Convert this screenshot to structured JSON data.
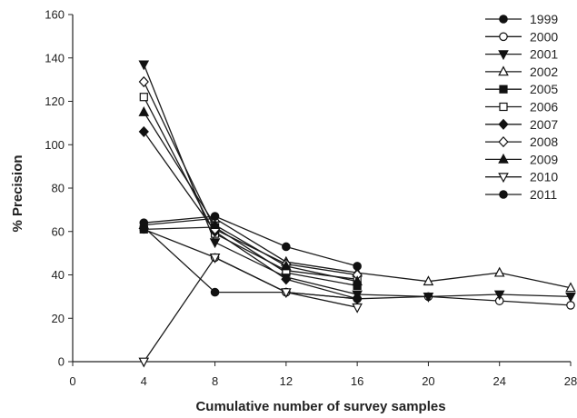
{
  "chart_data": {
    "type": "line",
    "title": "",
    "xlabel": "Cumulative number of survey samples",
    "ylabel": "% Precision",
    "xlim": [
      0,
      28
    ],
    "ylim": [
      0,
      160
    ],
    "xticks": [
      0,
      4,
      8,
      12,
      16,
      20,
      24,
      28
    ],
    "yticks": [
      0,
      20,
      40,
      60,
      80,
      100,
      120,
      140,
      160
    ],
    "grid": false,
    "legend_position": "top-right",
    "series": [
      {
        "name": "1999",
        "marker": "circle-filled",
        "x": [
          4,
          8,
          12,
          16
        ],
        "y": [
          62,
          32,
          32,
          29
        ]
      },
      {
        "name": "2000",
        "marker": "circle-open",
        "x": [
          4,
          8,
          12,
          16,
          20,
          24,
          28
        ],
        "y": [
          61,
          48,
          32,
          29,
          30,
          28,
          26
        ]
      },
      {
        "name": "2001",
        "marker": "triangle-down-filled",
        "x": [
          4,
          8,
          12,
          16,
          20,
          24,
          28
        ],
        "y": [
          137,
          55,
          39,
          31,
          30,
          31,
          30
        ]
      },
      {
        "name": "2002",
        "marker": "triangle-up-open",
        "x": [
          4,
          8,
          12,
          16,
          20,
          24,
          28
        ],
        "y": [
          63,
          66,
          46,
          41,
          37,
          41,
          34
        ]
      },
      {
        "name": "2005",
        "marker": "square-filled",
        "x": [
          4,
          8,
          12,
          16
        ],
        "y": [
          61,
          62,
          41,
          35
        ]
      },
      {
        "name": "2006",
        "marker": "square-open",
        "x": [
          4,
          8,
          12,
          16
        ],
        "y": [
          122,
          59,
          42,
          38
        ]
      },
      {
        "name": "2007",
        "marker": "diamond-filled",
        "x": [
          4,
          8,
          12,
          16
        ],
        "y": [
          106,
          60,
          38,
          29
        ]
      },
      {
        "name": "2008",
        "marker": "diamond-open",
        "x": [
          4,
          8,
          12,
          16
        ],
        "y": [
          129,
          61,
          45,
          40
        ]
      },
      {
        "name": "2009",
        "marker": "triangle-up-filled",
        "x": [
          4,
          8,
          12,
          16
        ],
        "y": [
          115,
          63,
          44,
          37
        ]
      },
      {
        "name": "2010",
        "marker": "triangle-down-open",
        "x": [
          4,
          8,
          12,
          16
        ],
        "y": [
          0,
          48,
          32,
          25
        ]
      },
      {
        "name": "2011",
        "marker": "circle-filled",
        "x": [
          4,
          8,
          12,
          16
        ],
        "y": [
          64,
          67,
          53,
          44
        ]
      }
    ]
  }
}
